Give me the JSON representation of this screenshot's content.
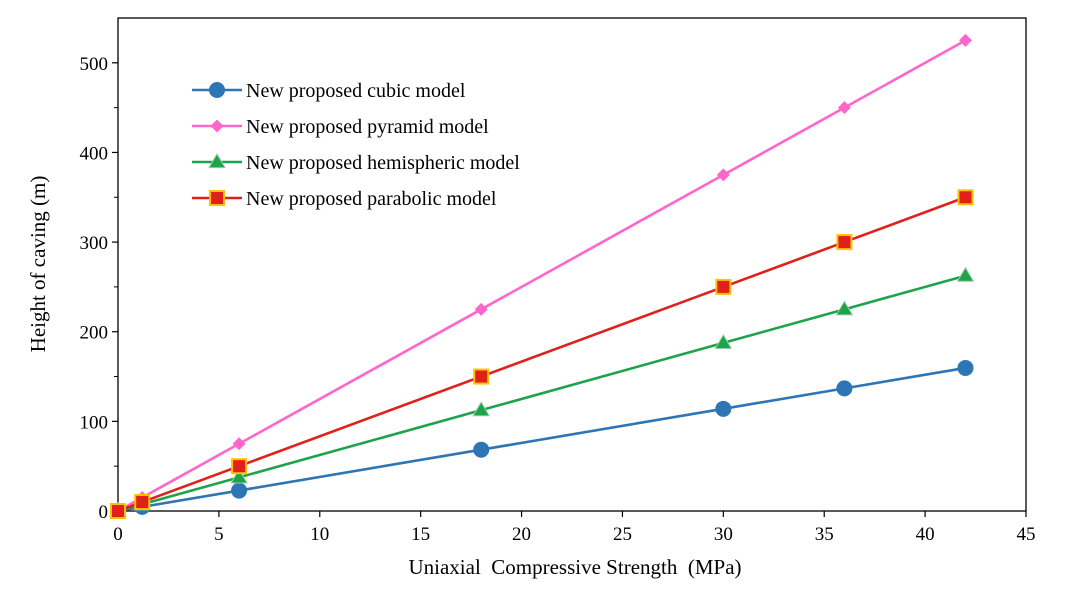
{
  "chart_data": {
    "type": "line",
    "xlabel": "Uniaxial  Compressive Strength  (MPa)",
    "ylabel": "Height of caving (m)",
    "xlim": [
      0,
      45
    ],
    "ylim": [
      0,
      550
    ],
    "xticks": [
      0,
      5,
      10,
      15,
      20,
      25,
      30,
      35,
      40,
      45
    ],
    "yticks": [
      0,
      100,
      200,
      300,
      400,
      500
    ],
    "grid": false,
    "legend_position": "top-left",
    "series": [
      {
        "name": "New proposed cubic model",
        "color": "#2e75b6",
        "marker": "circle",
        "x": [
          0,
          1.2,
          6,
          18,
          30,
          36,
          42
        ],
        "y": [
          0,
          4.6,
          22.8,
          68.4,
          114,
          136.8,
          159.6
        ]
      },
      {
        "name": "New proposed pyramid model",
        "color": "#ff66cc",
        "marker": "diamond",
        "x": [
          0,
          1.2,
          6,
          18,
          30,
          36,
          42
        ],
        "y": [
          0,
          15,
          75,
          225,
          375,
          450,
          525
        ]
      },
      {
        "name": "New proposed hemispheric model",
        "color": "#1fa34a",
        "marker": "triangle",
        "x": [
          0,
          1.2,
          6,
          18,
          30,
          36,
          42
        ],
        "y": [
          0,
          7.5,
          37.5,
          112.5,
          187.5,
          225,
          262.5
        ]
      },
      {
        "name": "New proposed parabolic model",
        "color": "#e0201b",
        "marker": "square",
        "x": [
          0,
          1.2,
          6,
          18,
          30,
          36,
          42
        ],
        "y": [
          0,
          10,
          50,
          150,
          250,
          300,
          350
        ]
      }
    ]
  }
}
